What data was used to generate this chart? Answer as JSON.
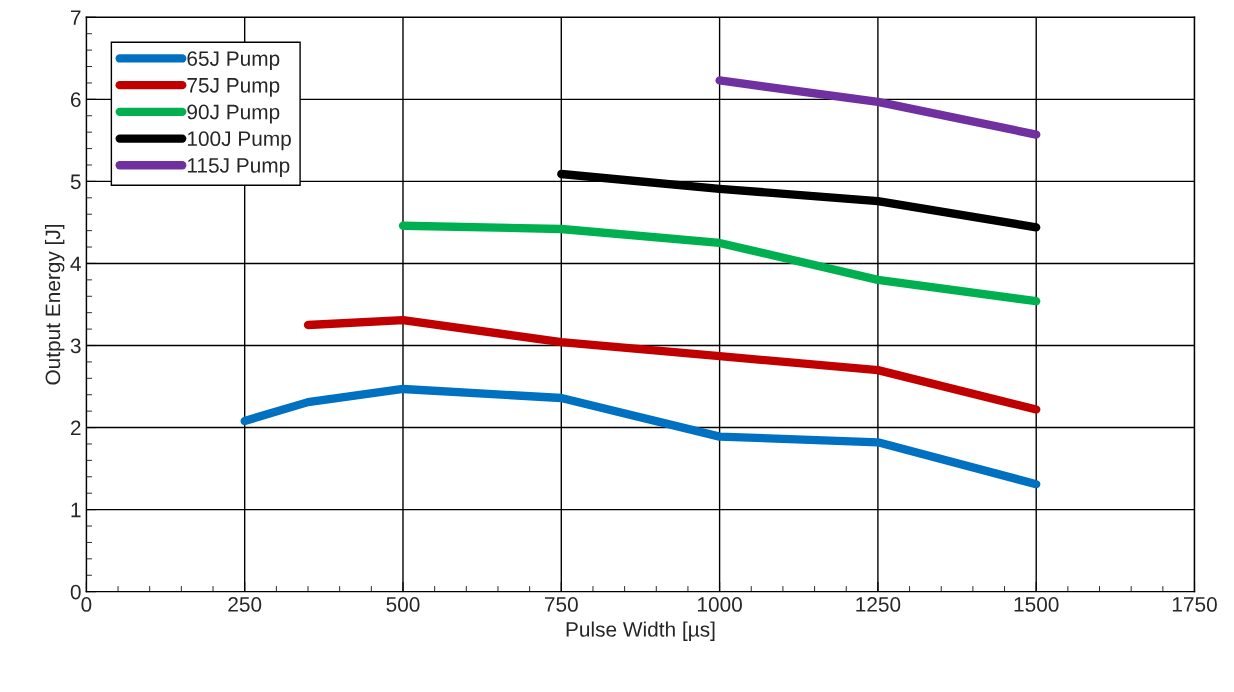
{
  "chart_data": {
    "type": "line",
    "xlabel": "Pulse Width [µs]",
    "ylabel": "Output Energy [J]",
    "xlim": [
      0,
      1750
    ],
    "xticks": [
      0,
      250,
      500,
      750,
      1000,
      1250,
      1500,
      1750
    ],
    "ylim": [
      0,
      7
    ],
    "yticks": [
      0,
      1,
      2,
      3,
      4,
      5,
      6,
      7
    ],
    "grid": true,
    "legend": "top left",
    "marker": "none",
    "line_style": "solid",
    "series": [
      {
        "name": "65J Pump",
        "color": "#0070c0",
        "x": [
          250,
          350,
          500,
          750,
          1000,
          1250,
          1500
        ],
        "values": [
          2.08,
          2.31,
          2.47,
          2.36,
          1.89,
          1.82,
          1.31
        ]
      },
      {
        "name": "75J Pump",
        "color": "#c00000",
        "x": [
          350,
          500,
          750,
          1000,
          1250,
          1500
        ],
        "values": [
          3.25,
          3.31,
          3.04,
          2.87,
          2.7,
          2.22
        ]
      },
      {
        "name": "90J Pump",
        "color": "#00b050",
        "x": [
          500,
          750,
          1000,
          1250,
          1500
        ],
        "values": [
          4.46,
          4.42,
          4.25,
          3.8,
          3.54
        ]
      },
      {
        "name": "100J Pump",
        "color": "#000000",
        "x": [
          750,
          1000,
          1250,
          1500
        ],
        "values": [
          5.09,
          4.91,
          4.76,
          4.44
        ]
      },
      {
        "name": "115J Pump",
        "color": "#7030a0",
        "x": [
          1000,
          1250,
          1500
        ],
        "values": [
          6.23,
          5.97,
          5.57
        ]
      }
    ]
  }
}
